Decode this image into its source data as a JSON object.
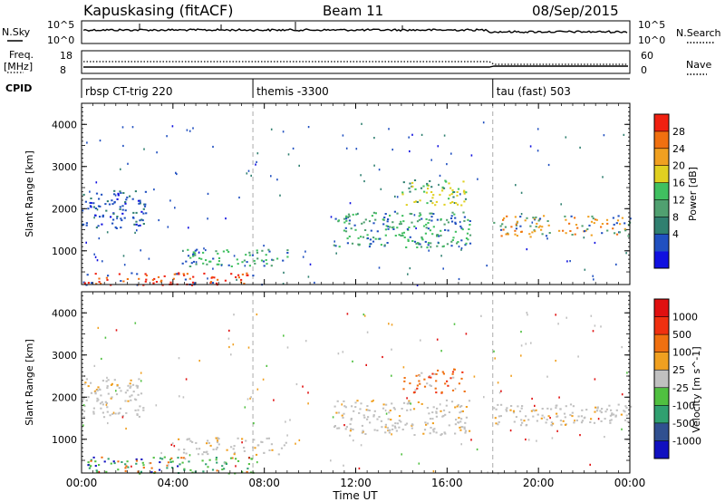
{
  "header": {
    "station": "Kapuskasing (fitACF)",
    "beam": "Beam 11",
    "date": "08/Sep/2015"
  },
  "summary_panels": {
    "nsky_label": "N.Sky",
    "nsearch_label": "N.Search",
    "noise_ticks_left": [
      "10^5",
      "10^0"
    ],
    "noise_ticks_right": [
      "10^5",
      "10^0"
    ],
    "freq_label": "Freq.",
    "freq_unit": "[MHz]",
    "freq_ticks": [
      "18",
      "8"
    ],
    "nave_label": "Nave",
    "nave_ticks": [
      "60",
      "0"
    ],
    "cpid_label": "CPID"
  },
  "cpid_segments": [
    {
      "start_hour": 0,
      "label": "rbsp CT-trig 220"
    },
    {
      "start_hour": 7.5,
      "label": "themis -3300"
    },
    {
      "start_hour": 18,
      "label": "tau (fast) 503"
    }
  ],
  "dashed_markers_hours": [
    7.5,
    18
  ],
  "x_axis": {
    "label": "Time UT",
    "ticks": [
      "00:00",
      "04:00",
      "08:00",
      "12:00",
      "16:00",
      "20:00",
      "00:00"
    ],
    "tick_hours": [
      0,
      4,
      8,
      12,
      16,
      20,
      24
    ]
  },
  "chart_data": [
    {
      "type": "heatmap",
      "title": "",
      "xlabel": "",
      "ylabel": "Slant Range [km]",
      "xlim": [
        0,
        24
      ],
      "ylim": [
        200,
        4500
      ],
      "yticks": [
        1000,
        2000,
        3000,
        4000
      ],
      "colorbar": {
        "label": "Power [dB]",
        "ticks": [
          "4",
          "8",
          "12",
          "16",
          "20",
          "24",
          "28"
        ],
        "colors": [
          "#1010e0",
          "#2050c0",
          "#308070",
          "#50a070",
          "#40c060",
          "#e0d020",
          "#f0a020",
          "#f07010",
          "#f02010"
        ]
      },
      "features": [
        {
          "hours": [
            0,
            2.8
          ],
          "range_km": [
            1550,
            2450
          ],
          "dominant": "blue-green"
        },
        {
          "hours": [
            0,
            7.5
          ],
          "range_km": [
            200,
            500
          ],
          "dominant": "red-orange"
        },
        {
          "hours": [
            4.2,
            9.0
          ],
          "range_km": [
            650,
            1050
          ],
          "dominant": "green"
        },
        {
          "hours": [
            11.0,
            17.0
          ],
          "range_km": [
            1100,
            1950
          ],
          "dominant": "green-blue"
        },
        {
          "hours": [
            14.0,
            16.8
          ],
          "range_km": [
            2100,
            2700
          ],
          "dominant": "yellow-green"
        },
        {
          "hours": [
            18.0,
            24.0
          ],
          "range_km": [
            1350,
            1850
          ],
          "dominant": "orange-blue"
        }
      ]
    },
    {
      "type": "heatmap",
      "title": "",
      "xlabel": "Time UT",
      "ylabel": "Slant Range [km]",
      "xlim": [
        0,
        24
      ],
      "ylim": [
        200,
        4500
      ],
      "yticks": [
        1000,
        2000,
        3000,
        4000
      ],
      "colorbar": {
        "label": "Velocity [m s^-1]",
        "ticks": [
          "1000",
          "500",
          "100",
          "25",
          "-25",
          "-100",
          "-500",
          "-1000"
        ],
        "colors": [
          "#1010c0",
          "#305090",
          "#30a070",
          "#50c040",
          "#c0c0c0",
          "#f0a020",
          "#f07010",
          "#f03010",
          "#e01010"
        ]
      },
      "features": [
        {
          "hours": [
            0,
            2.8
          ],
          "range_km": [
            1550,
            2450
          ],
          "dominant": "grey"
        },
        {
          "hours": [
            0,
            7.5
          ],
          "range_km": [
            200,
            600
          ],
          "dominant": "green-orange"
        },
        {
          "hours": [
            4.2,
            9.0
          ],
          "range_km": [
            650,
            1050
          ],
          "dominant": "grey"
        },
        {
          "hours": [
            11.0,
            17.0
          ],
          "range_km": [
            1100,
            1950
          ],
          "dominant": "grey"
        },
        {
          "hours": [
            14.0,
            16.8
          ],
          "range_km": [
            2100,
            2700
          ],
          "dominant": "orange-red"
        },
        {
          "hours": [
            18.0,
            24.0
          ],
          "range_km": [
            1350,
            1850
          ],
          "dominant": "grey"
        }
      ]
    }
  ]
}
